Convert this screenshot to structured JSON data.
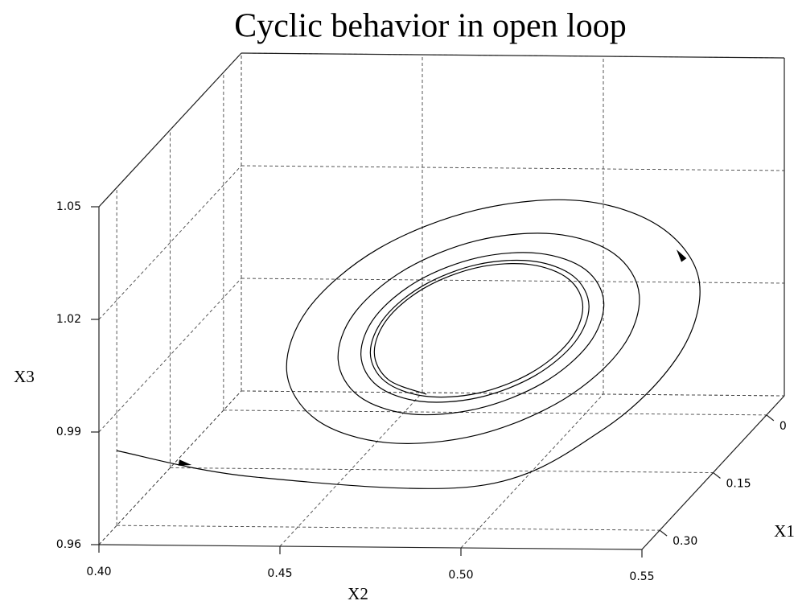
{
  "chart_data": {
    "type": "line3d",
    "title": "Cyclic behavior in open loop",
    "x1_label": "X1",
    "x2_label": "X2",
    "x3_label": "X3",
    "color": "#000000",
    "grid": true,
    "x1lim": [
      0.35,
      -0.05
    ],
    "x1ticks": [
      0,
      0.15,
      {
        "value": 0.3,
        "label": "0.30"
      }
    ],
    "x2lim": [
      0.4,
      0.55
    ],
    "x2ticks": [
      {
        "value": 0.4,
        "label": "0.40"
      },
      0.45,
      {
        "value": 0.5,
        "label": "0.50"
      },
      {
        "value": 0.55,
        "label": "0.55"
      }
    ],
    "x3lim": [
      0.96,
      1.05
    ],
    "x3ticks": [
      {
        "value": 0.96,
        "label": "0.96"
      },
      0.99,
      1.02,
      1.05
    ],
    "series": [
      {
        "x1": [
          0.3,
          0.22,
          0.15,
          0.15,
          0.15,
          0.15,
          0.15,
          0.15,
          0.15,
          0.15,
          0.15,
          0.15,
          0.15,
          0.15,
          0.15,
          0.15,
          0.15,
          0.15,
          0.15,
          0.15,
          0.15,
          0.15,
          0.15,
          0.15,
          0.15,
          0.15,
          0.15,
          0.15,
          0.15,
          0.15,
          0.15,
          0.15,
          0.15,
          0.15,
          0.15,
          0.15,
          0.15,
          0.15,
          0.15,
          0.15,
          0.15,
          0.15,
          0.15,
          0.15,
          0.15,
          0.15,
          0.15,
          0.15,
          0.15,
          0.15,
          0.15,
          0.15,
          0.15,
          0.15,
          0.15,
          0.15,
          0.15,
          0.15,
          0.15,
          0.15,
          0.15,
          0.15
        ],
        "x2": [
          0.4,
          0.43,
          0.485,
          0.5191,
          0.5404,
          0.5462,
          0.5356,
          0.5135,
          0.485,
          0.4576,
          0.4383,
          0.4322,
          0.4405,
          0.46,
          0.485,
          0.5086,
          0.5247,
          0.5296,
          0.5226,
          0.5062,
          0.485,
          0.4648,
          0.4508,
          0.4464,
          0.4522,
          0.4664,
          0.485,
          0.503,
          0.5156,
          0.5198,
          0.5147,
          0.5019,
          0.485,
          0.4685,
          0.4567,
          0.4527,
          0.4573,
          0.4691,
          0.485,
          0.5006,
          0.5118,
          0.5157,
          0.5114,
          0.5002,
          0.485,
          0.47,
          0.4592,
          0.4553,
          0.4594,
          0.4703,
          0.485,
          0.4996,
          0.5102,
          0.514,
          0.5101,
          0.4994,
          0.485,
          0.4706,
          0.4602,
          0.4564,
          0.4603,
          0.4708
        ],
        "x3": [
          0.9799,
          0.965,
          0.9559,
          0.9709,
          0.9911,
          1.0107,
          1.0252,
          1.0321,
          1.0295,
          1.0189,
          1.0029,
          0.9861,
          0.9731,
          0.9672,
          0.9695,
          0.9791,
          0.9929,
          1.0071,
          1.0181,
          1.0232,
          1.0213,
          1.0133,
          1.0015,
          0.9892,
          0.9795,
          0.9749,
          0.9765,
          0.9835,
          0.9939,
          1.005,
          1.0138,
          1.018,
          1.0167,
          1.0104,
          1.0008,
          0.9905,
          0.9823,
          0.9783,
          0.9794,
          0.9853,
          0.9944,
          1.0041,
          1.012,
          1.0159,
          1.0149,
          1.0092,
          1.0005,
          0.9911,
          0.9835,
          0.9797,
          0.9806,
          0.9861,
          0.9946,
          1.0038,
          1.0112,
          1.015,
          1.0141,
          1.0087,
          1.0004,
          0.9913,
          0.984,
          0.9802
        ]
      }
    ]
  }
}
